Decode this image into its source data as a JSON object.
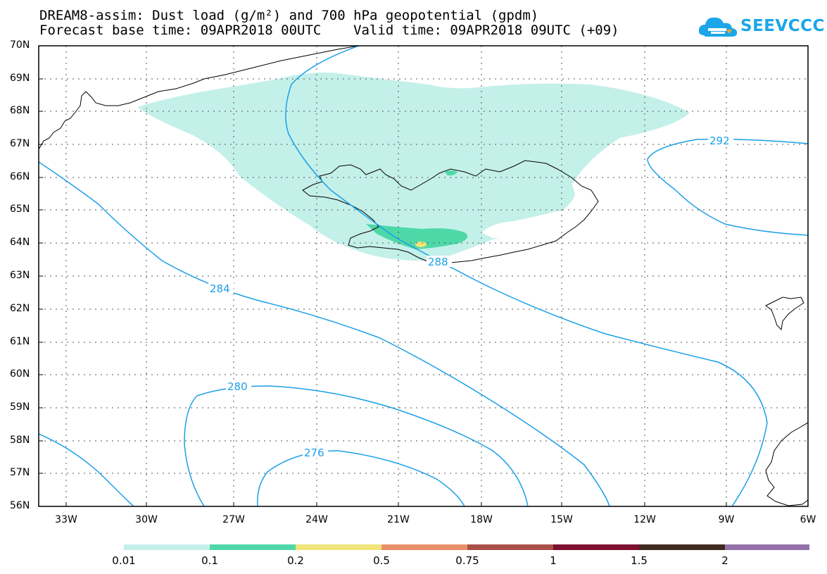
{
  "title_line1": "DREAM8-assim: Dust load (g/m²) and 700 hPa geopotential (gpdm)",
  "title_line2": "Forecast base time: 09APR2018 00UTC    Valid time: 09APR2018 09UTC (+09)",
  "logo": {
    "text": "SEEVCCC",
    "icon": "cloud-icon",
    "color": "#1aa6e8"
  },
  "lat_labels": [
    "70N",
    "69N",
    "68N",
    "67N",
    "66N",
    "65N",
    "64N",
    "63N",
    "62N",
    "61N",
    "60N",
    "59N",
    "58N",
    "57N",
    "56N"
  ],
  "lon_labels": [
    "33W",
    "30W",
    "27W",
    "24W",
    "21W",
    "18W",
    "15W",
    "12W",
    "9W",
    "6W"
  ],
  "contours": [
    {
      "label": "292"
    },
    {
      "label": "288"
    },
    {
      "label": "284"
    },
    {
      "label": "280"
    },
    {
      "label": "276"
    }
  ],
  "contour_color": "#1aa0e8",
  "colorbar": {
    "labels": [
      "0.01",
      "0.1",
      "0.2",
      "0.5",
      "0.75",
      "1",
      "1.5",
      "2"
    ],
    "colors": [
      "#c4f0ea",
      "#4ed8a8",
      "#f0e47a",
      "#e8906a",
      "#aa4f48",
      "#7e1030",
      "#3e2a1e",
      "#9470a8"
    ]
  }
}
